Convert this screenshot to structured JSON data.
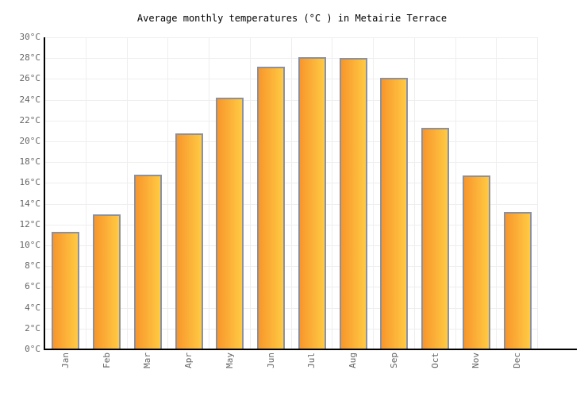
{
  "chart_data": {
    "type": "bar",
    "title": "Average monthly temperatures (°C ) in Metairie Terrace",
    "categories": [
      "Jan",
      "Feb",
      "Mar",
      "Apr",
      "May",
      "Jun",
      "Jul",
      "Aug",
      "Sep",
      "Oct",
      "Nov",
      "Dec"
    ],
    "values": [
      11.3,
      13.0,
      16.8,
      20.8,
      24.2,
      27.2,
      28.1,
      28.0,
      26.1,
      21.3,
      16.7,
      13.2
    ],
    "unit": "°C",
    "ylim": [
      0,
      30
    ],
    "ytick_step": 2,
    "xlabel": "",
    "ylabel": "",
    "grid": true,
    "legend": false,
    "colors": {
      "bar_gradient_left": "#f8962c",
      "bar_gradient_right": "#ffca43",
      "bar_border": "#8b919f",
      "gridline": "#eeeeee",
      "axis": "#000000",
      "tick_label": "#666666",
      "title": "#000000",
      "background": "#ffffff"
    }
  }
}
